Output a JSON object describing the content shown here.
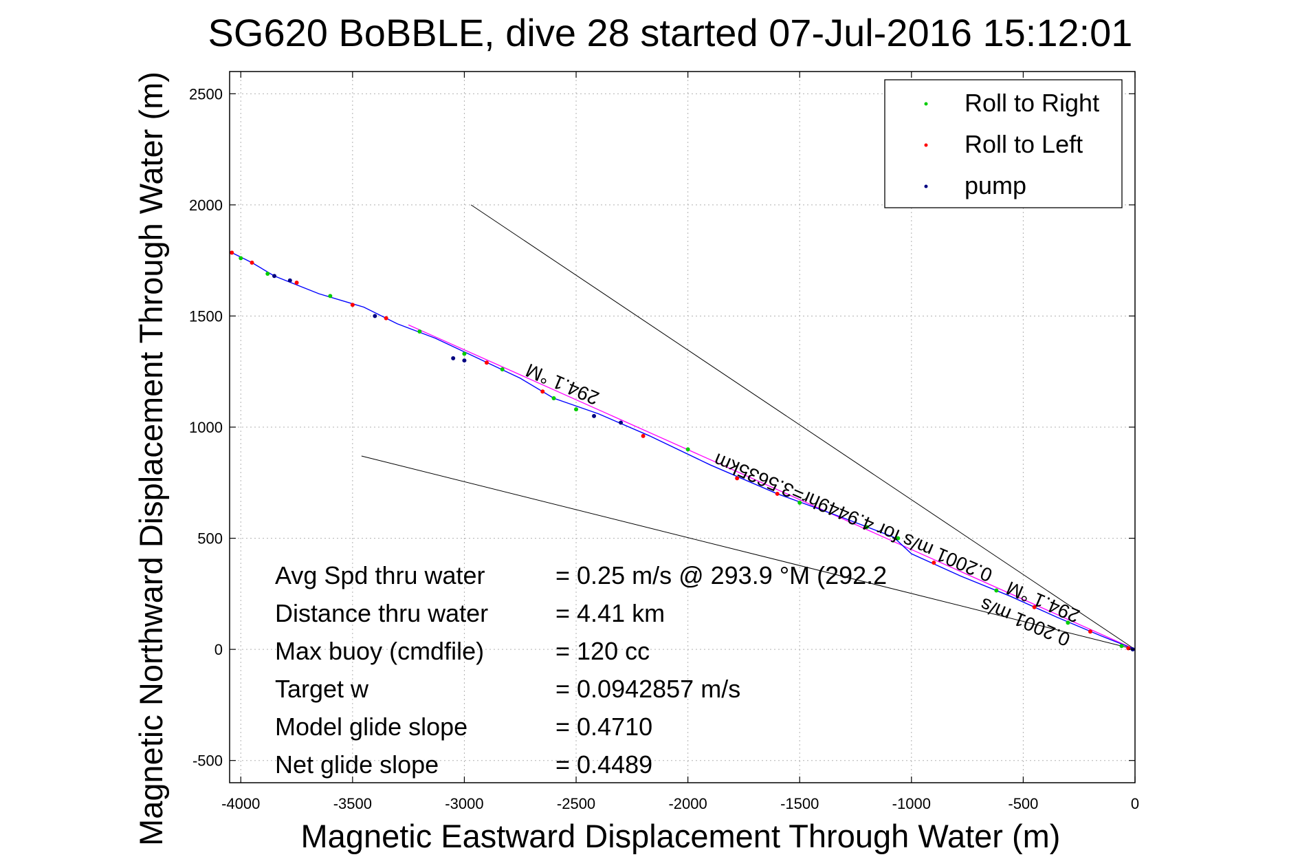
{
  "chart_data": {
    "type": "scatter",
    "title": "SG620 BoBBLE, dive 28 started 07-Jul-2016 15:12:01",
    "xlabel": "Magnetic Eastward Displacement Through Water (m)",
    "ylabel": "Magnetic Northward Displacement Through Water (m)",
    "xlim": [
      -4050,
      0
    ],
    "ylim": [
      -600,
      2600
    ],
    "xticks": [
      -4000,
      -3500,
      -3000,
      -2500,
      -2000,
      -1500,
      -1000,
      -500,
      0
    ],
    "yticks": [
      -500,
      0,
      500,
      1000,
      1500,
      2000,
      2500
    ],
    "grid": true,
    "legend_position": "top-right",
    "legend": [
      {
        "label": "Roll to Right",
        "color": "#00cc00"
      },
      {
        "label": "Roll to Left",
        "color": "#ff0000"
      },
      {
        "label": "pump",
        "color": "#000080"
      }
    ],
    "track": {
      "name": "dive track",
      "color": "#0000ff",
      "points": [
        [
          0,
          0
        ],
        [
          -150,
          60
        ],
        [
          -350,
          145
        ],
        [
          -560,
          240
        ],
        [
          -780,
          330
        ],
        [
          -1000,
          430
        ],
        [
          -1080,
          505
        ],
        [
          -1300,
          590
        ],
        [
          -1600,
          700
        ],
        [
          -1900,
          830
        ],
        [
          -2170,
          960
        ],
        [
          -2400,
          1060
        ],
        [
          -2600,
          1130
        ],
        [
          -2750,
          1220
        ],
        [
          -2950,
          1315
        ],
        [
          -3130,
          1400
        ],
        [
          -3300,
          1465
        ],
        [
          -3450,
          1540
        ],
        [
          -3650,
          1600
        ],
        [
          -3850,
          1680
        ],
        [
          -3950,
          1740
        ],
        [
          -4050,
          1790
        ]
      ]
    },
    "roll_right_points": [
      [
        -60,
        15
      ],
      [
        -300,
        120
      ],
      [
        -620,
        265
      ],
      [
        -1060,
        500
      ],
      [
        -1200,
        550
      ],
      [
        -1500,
        660
      ],
      [
        -2000,
        900
      ],
      [
        -2500,
        1080
      ],
      [
        -2600,
        1130
      ],
      [
        -2830,
        1260
      ],
      [
        -3000,
        1330
      ],
      [
        -3200,
        1430
      ],
      [
        -3600,
        1590
      ],
      [
        -3880,
        1690
      ],
      [
        -4000,
        1760
      ]
    ],
    "roll_left_points": [
      [
        -30,
        5
      ],
      [
        -200,
        80
      ],
      [
        -450,
        190
      ],
      [
        -900,
        390
      ],
      [
        -1600,
        700
      ],
      [
        -1780,
        770
      ],
      [
        -2200,
        960
      ],
      [
        -2650,
        1160
      ],
      [
        -2900,
        1290
      ],
      [
        -3350,
        1490
      ],
      [
        -3500,
        1550
      ],
      [
        -3750,
        1650
      ],
      [
        -3950,
        1740
      ],
      [
        -4040,
        1785
      ]
    ],
    "pump_points": [
      [
        -10,
        0
      ],
      [
        -2300,
        1020
      ],
      [
        -2420,
        1050
      ],
      [
        -3000,
        1300
      ],
      [
        -3050,
        1310
      ],
      [
        -3400,
        1500
      ],
      [
        -3850,
        1680
      ],
      [
        -3780,
        1660
      ]
    ],
    "fit_line": {
      "color": "#ff00ff",
      "from": [
        -3250,
        1460
      ],
      "to": [
        0,
        0
      ]
    },
    "reference_lines": [
      {
        "color": "#000000",
        "from": [
          -2970,
          2000
        ],
        "to": [
          0,
          0
        ]
      },
      {
        "color": "#000000",
        "from": [
          -3460,
          870
        ],
        "to": [
          0,
          0
        ]
      }
    ],
    "rotated_labels": [
      {
        "text": "294.1 °M",
        "at": [
          -2550,
          1220
        ],
        "angle": 23
      },
      {
        "text": "0.2001 m/s for 4.9449hr=3.5635km",
        "at": [
          -1250,
          620
        ],
        "angle": 23
      },
      {
        "text": "294.1 °M",
        "at": [
          -400,
          240
        ],
        "angle": 23
      },
      {
        "text": "0.2001 m/s",
        "at": [
          -480,
          150
        ],
        "angle": 23
      }
    ],
    "stats": [
      {
        "label": "Avg Spd thru water",
        "value": "=  0.25 m/s @ 293.9  °M (292.2"
      },
      {
        "label": "Distance thru water",
        "value": "=  4.41 km"
      },
      {
        "label": "Max buoy (cmdfile)",
        "value": "= 120 cc"
      },
      {
        "label": "Target w",
        "value": "= 0.0942857 m/s"
      },
      {
        "label": "Model glide slope",
        "value": "= 0.4710"
      },
      {
        "label": "Net glide slope",
        "value": "= 0.4489"
      }
    ]
  }
}
